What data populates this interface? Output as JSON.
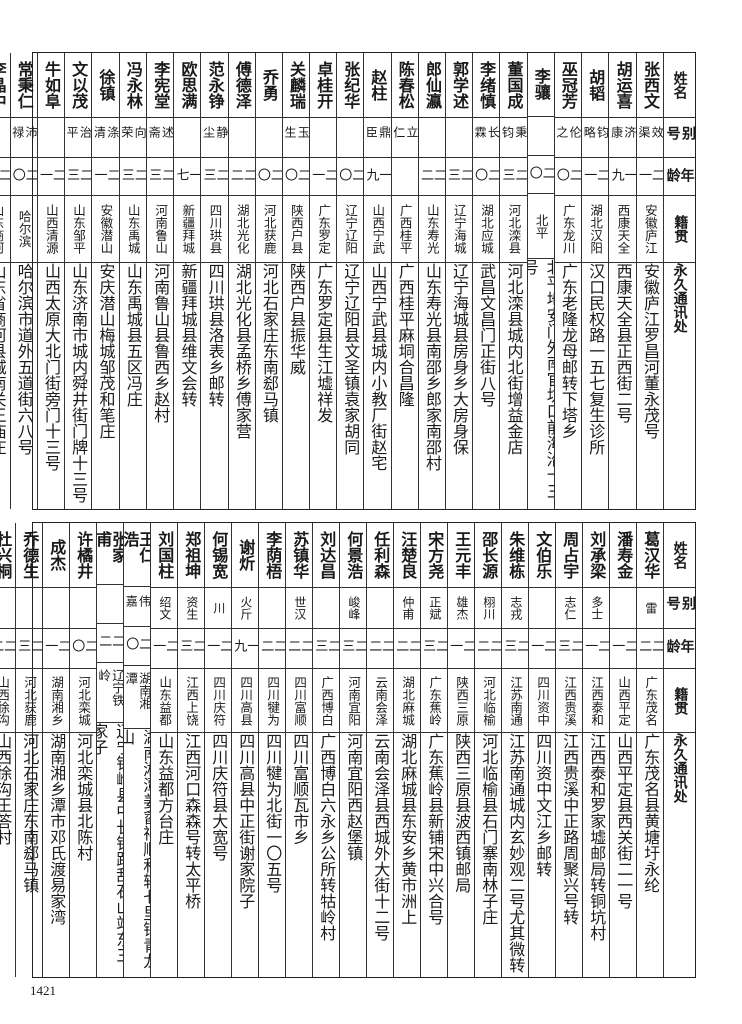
{
  "header": {
    "name": "姓名",
    "alias": "别号",
    "age": "年龄",
    "origin": "籍贯",
    "address": "永久通讯处"
  },
  "top_table": [
    {
      "name": "张西文",
      "alias": "效渠",
      "age": "二一",
      "origin": "安徽庐江",
      "address": "安徽庐江罗昌河董永茂号"
    },
    {
      "name": "胡运喜",
      "alias": "济康",
      "age": "一九",
      "origin": "西康天全",
      "address": "西康天全县正西街二号"
    },
    {
      "name": "胡韬",
      "alias": "钧略",
      "age": "二一",
      "origin": "湖北汉阳",
      "address": "汉口民权路一五七复生诊所"
    },
    {
      "name": "巫冠芳",
      "alias": "伦之",
      "age": "二〇",
      "origin": "广东龙川",
      "address": "广东老隆龙母邮转下塔乡"
    },
    {
      "name": "李骧",
      "alias": "",
      "age": "二〇",
      "origin": "北平",
      "address": "北平地安门外南官坊口前海沿十三号"
    },
    {
      "name": "董国成",
      "alias": "秉钧",
      "age": "二三",
      "origin": "河北滦县",
      "address": "河北滦县城内北街增益金店"
    },
    {
      "name": "李绪慎",
      "alias": "长霖",
      "age": "二〇",
      "origin": "湖北应城",
      "address": "武昌文昌门正街八号"
    },
    {
      "name": "郭学述",
      "alias": "",
      "age": "二三",
      "origin": "辽宁海城",
      "address": "辽宁海城县房身乡大房身保"
    },
    {
      "name": "郎仙瀛",
      "alias": "",
      "age": "二二",
      "origin": "山东寿光",
      "address": "山东寿光县南邵乡郎家南邵村"
    },
    {
      "name": "陈春松",
      "alias": "立仁",
      "age": "",
      "origin": "广西桂平",
      "address": "广西桂平麻垌合昌隆"
    },
    {
      "name": "赵柱",
      "alias": "鼎臣",
      "age": "一九",
      "origin": "山西宁武",
      "address": "山西宁武县城内小教厂街赵宅"
    },
    {
      "name": "张纪华",
      "alias": "",
      "age": "二〇",
      "origin": "辽宁辽阳",
      "address": "辽宁辽阳县文圣镇袁家胡同"
    },
    {
      "name": "卓桂开",
      "alias": "",
      "age": "二一",
      "origin": "广东罗定",
      "address": "广东罗定县生江墟祥发"
    },
    {
      "name": "关麟瑞",
      "alias": "玉生",
      "age": "二〇",
      "origin": "陕西户县",
      "address": "陕西户县振华威"
    },
    {
      "name": "乔勇",
      "alias": "",
      "age": "二〇",
      "origin": "河北获鹿",
      "address": "河北石家庄东南郄马镇"
    },
    {
      "name": "傅德泽",
      "alias": "",
      "age": "二二",
      "origin": "湖北光化",
      "address": "湖北光化县孟桥乡傅家营"
    },
    {
      "name": "范永铮",
      "alias": "静尘",
      "age": "二三",
      "origin": "四川珙县",
      "address": "四川珙县洛表乡邮转"
    },
    {
      "name": "欧思满",
      "alias": "",
      "age": "一七",
      "origin": "新疆拜城",
      "address": "新疆拜城县维文会转"
    },
    {
      "name": "李宪堂",
      "alias": "述斋",
      "age": "二三",
      "origin": "河南鲁山",
      "address": "河南鲁山县鲁西乡赵村"
    },
    {
      "name": "冯永林",
      "alias": "向荣",
      "age": "二三",
      "origin": "山东禹城",
      "address": "山东禹城县五区冯庄"
    },
    {
      "name": "徐镇",
      "alias": "涤清",
      "age": "二一",
      "origin": "安徽潜山",
      "address": "安庆潜山梅城邹茂和笔庄"
    },
    {
      "name": "文以茂",
      "alias": "治平",
      "age": "二三",
      "origin": "山东邹平",
      "address": "山东济南市城内舜井街门牌十三号"
    },
    {
      "name": "牛如阜",
      "alias": "",
      "age": "二一",
      "origin": "山西清源",
      "address": "山西太原大北门街旁门十三号"
    },
    {
      "name": "常秉仁",
      "alias": "沛禄",
      "age": "二〇",
      "origin": "哈尔滨",
      "address": "哈尔滨市道外五道街六八号"
    },
    {
      "name": "李晶中",
      "alias": "",
      "age": "二三",
      "origin": "山东商河",
      "address": "山东省商河县城南关王庙庄"
    }
  ],
  "bottom_table": [
    {
      "name": "葛汉华",
      "alias": "雷",
      "age": "二二",
      "origin": "广东茂名",
      "address": "广东茂名县黄塘圩永纶"
    },
    {
      "name": "潘寿金",
      "alias": "",
      "age": "二一",
      "origin": "山西平定",
      "address": "山西平定县西关街二一号"
    },
    {
      "name": "刘承梁",
      "alias": "多士",
      "age": "二一",
      "origin": "江西泰和",
      "address": "江西泰和罗家墟邮局转铜坑村"
    },
    {
      "name": "周占宇",
      "alias": "志仁",
      "age": "二三",
      "origin": "江西贵溪",
      "address": "江西贵溪中正路周聚兴号转"
    },
    {
      "name": "文伯乐",
      "alias": "",
      "age": "二一",
      "origin": "四川资中",
      "address": "四川资中文江乡邮转"
    },
    {
      "name": "朱维栋",
      "alias": "志戎",
      "age": "二三",
      "origin": "江苏南通",
      "address": "江苏南通城内玄妙观二号尤其微转"
    },
    {
      "name": "邵长源",
      "alias": "栩川",
      "age": "二二",
      "origin": "河北临榆",
      "address": "河北临榆县石门寨南林子庄"
    },
    {
      "name": "王元丰",
      "alias": "雄杰",
      "age": "二一",
      "origin": "陕西三原",
      "address": "陕西三原县波西镇邮局"
    },
    {
      "name": "宋方尧",
      "alias": "正斌",
      "age": "二三",
      "origin": "广东蕉岭",
      "address": "广东蕉岭县新铺宋中兴合号"
    },
    {
      "name": "汪楚良",
      "alias": "仲甫",
      "age": "二二",
      "origin": "湖北麻城",
      "address": "湖北麻城县东安乡黄市洲上"
    },
    {
      "name": "任利森",
      "alias": "",
      "age": "二二",
      "origin": "云南会泽",
      "address": "云南会泽县西城外大街十二号"
    },
    {
      "name": "何景浩",
      "alias": "峻峰",
      "age": "二三",
      "origin": "河南宜阳",
      "address": "河南宜阳西赵堡镇"
    },
    {
      "name": "刘达昌",
      "alias": "",
      "age": "二三",
      "origin": "广西博白",
      "address": "广西博白六永乡公所转牯岭村"
    },
    {
      "name": "苏镇华",
      "alias": "世汉",
      "age": "二二",
      "origin": "四川富顺",
      "address": "四川富顺瓦市乡"
    },
    {
      "name": "李荫梧",
      "alias": "",
      "age": "二二",
      "origin": "四川犍为",
      "address": "四川犍为北街一〇五号"
    },
    {
      "name": "谢炘",
      "alias": "火斤",
      "age": "一九",
      "origin": "四川高县",
      "address": "四川高县中正街谢家院子"
    },
    {
      "name": "何锡宽",
      "alias": "川",
      "age": "二一",
      "origin": "四川庆符",
      "address": "四川庆符县大宽号"
    },
    {
      "name": "郑祖坤",
      "alias": "资生",
      "age": "二三",
      "origin": "江西上饶",
      "address": "江西河口森森号转太平桥"
    },
    {
      "name": "刘国柱",
      "alias": "绍文",
      "age": "二一",
      "origin": "山东益都",
      "address": "山东益都方台庄"
    },
    {
      "name": "王仁浩",
      "alias": "伟嘉",
      "age": "二〇",
      "origin": "湖南湘潭",
      "address": "湖南湘潭姜畲祥顺和转七里铺青龙山"
    },
    {
      "name": "张家甫",
      "alias": "",
      "age": "二二",
      "origin": "辽宁铁岭",
      "address": "辽宁铁岭县中长铁路乱石山站东三家子"
    },
    {
      "name": "许橘井",
      "alias": "",
      "age": "二〇",
      "origin": "河北栾城",
      "address": "河北栾城县北陈村"
    },
    {
      "name": "成杰",
      "alias": "",
      "age": "二一",
      "origin": "湖南湘乡",
      "address": "湖南湘乡潭市邓氏渡易家湾"
    },
    {
      "name": "乔德生",
      "alias": "",
      "age": "二三",
      "origin": "河北获鹿",
      "address": "河北石家庄东南郄马镇"
    },
    {
      "name": "杜兴桐",
      "alias": "",
      "age": "二二",
      "origin": "山西徐沟",
      "address": "山西徐沟王答村"
    }
  ],
  "page_number": "1421"
}
